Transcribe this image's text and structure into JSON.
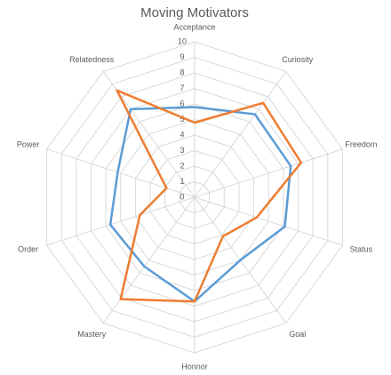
{
  "chart_data": {
    "type": "radar",
    "title": "Moving Motivators",
    "categories": [
      "Acceptance",
      "Curiosity",
      "Freedom",
      "Status",
      "Goal",
      "Honnor",
      "Mastery",
      "Order",
      "Power",
      "Relatedness"
    ],
    "series": [
      {
        "color": "#5b9bd5",
        "values": [
          5.8,
          6.6,
          6.5,
          6.1,
          5,
          6.7,
          5.5,
          5.7,
          5.2,
          7
        ]
      },
      {
        "color": "#ed7d31",
        "values": [
          4.8,
          7.5,
          7.2,
          4.2,
          3.1,
          6.7,
          8.1,
          3.7,
          1.9,
          8.5
        ]
      }
    ],
    "ylim": [
      0,
      10
    ],
    "yticks": [
      0,
      1,
      2,
      3,
      4,
      5,
      6,
      7,
      8,
      9,
      10
    ],
    "grid": true
  }
}
